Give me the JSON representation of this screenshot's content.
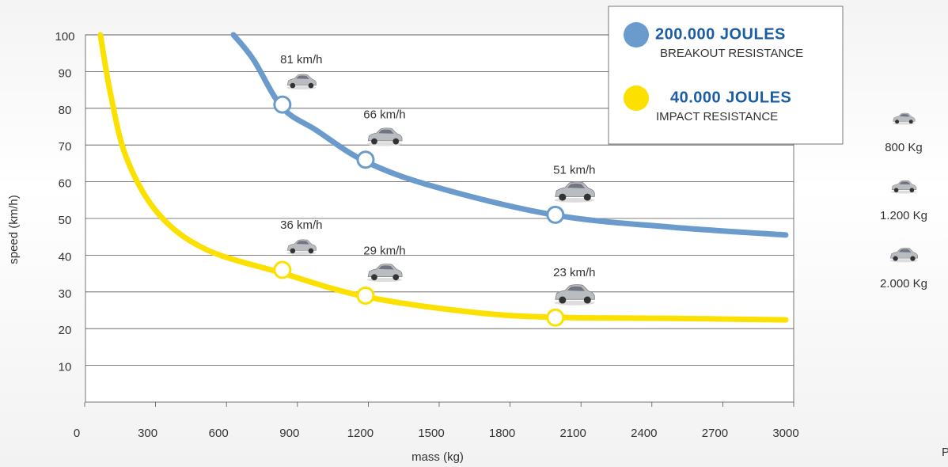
{
  "chart_data": {
    "type": "line",
    "xlabel": "mass (kg)",
    "ylabel": "speed (km/h)",
    "xlim": [
      0,
      3000
    ],
    "xticks": [
      0,
      300,
      600,
      900,
      1200,
      1500,
      1800,
      2100,
      2400,
      2700,
      3000
    ],
    "ylim": [
      0,
      100
    ],
    "yticks": [
      10,
      20,
      30,
      40,
      50,
      60,
      70,
      80,
      90,
      100
    ],
    "grid": true,
    "series": [
      {
        "name": "200.000 JOULES",
        "description": "BREAKOUT RESISTANCE",
        "color": "#6b9bcc",
        "x": [
          663,
          747,
          870,
          1014,
          1222,
          1517,
          2025,
          2521,
          3000
        ],
        "values": [
          100,
          93.3,
          80.2,
          74,
          65.5,
          58.6,
          50.9,
          47.6,
          45.5
        ],
        "points": {
          "x": [
            870,
            1222,
            2025
          ],
          "values": [
            81,
            66,
            51
          ],
          "value_labels": [
            "81 km/h",
            "66 km/h",
            "51 km/h"
          ]
        }
      },
      {
        "name": "40.000 JOULES",
        "description": "IMPACT RESISTANCE",
        "color": "#fbe000",
        "x": [
          100,
          144,
          211,
          345,
          546,
          870,
          1222,
          1684,
          2025,
          2521,
          3000
        ],
        "values": [
          100,
          83.6,
          66.4,
          51.3,
          41.6,
          35.1,
          28.7,
          24.4,
          23.1,
          22.8,
          22.4
        ],
        "points": {
          "x": [
            870,
            1222,
            2025
          ],
          "values": [
            36,
            29,
            23
          ],
          "value_labels": [
            "36 km/h",
            "29 km/h",
            "23 km/h"
          ]
        }
      }
    ],
    "vehicles": [
      "800 Kg",
      "1.200 Kg",
      "2.000 Kg"
    ],
    "footer_fragment": "P"
  }
}
